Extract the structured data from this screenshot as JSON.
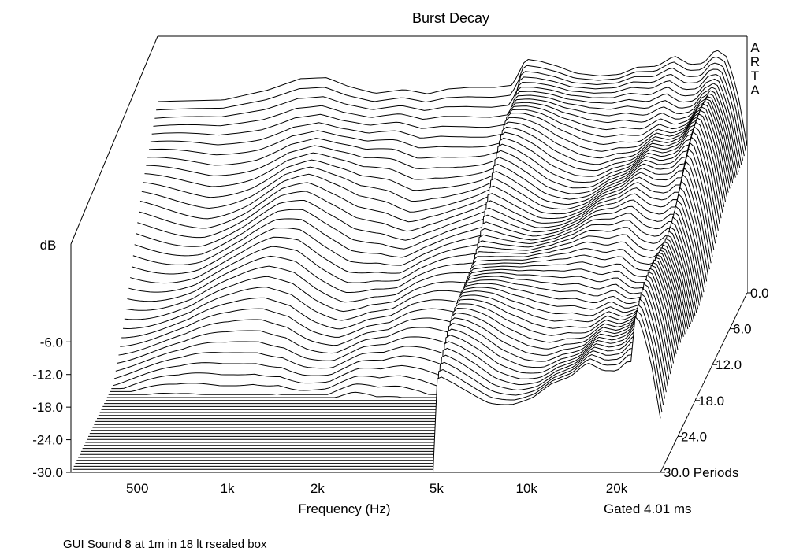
{
  "chart_data": {
    "type": "waterfall",
    "title": "Burst Decay",
    "brand": "ARTA",
    "xlabel": "Frequency (Hz)",
    "x_scale": "log",
    "xlim": [
      300,
      28000
    ],
    "x_ticks": [
      {
        "value": 500,
        "label": "500"
      },
      {
        "value": 1000,
        "label": "1k"
      },
      {
        "value": 2000,
        "label": "2k"
      },
      {
        "value": 5000,
        "label": "5k"
      },
      {
        "value": 10000,
        "label": "10k"
      },
      {
        "value": 20000,
        "label": "20k"
      }
    ],
    "ylabel": "dB",
    "ylim": [
      -30,
      12
    ],
    "y_ticks": [
      {
        "value": -6,
        "label": "-6.0"
      },
      {
        "value": -12,
        "label": "-12.0"
      },
      {
        "value": -18,
        "label": "-18.0"
      },
      {
        "value": -24,
        "label": "-24.0"
      },
      {
        "value": -30,
        "label": "-30.0"
      }
    ],
    "zlabel": "Periods",
    "zlim": [
      0,
      30
    ],
    "z_ticks": [
      {
        "value": 0,
        "label": "0.0"
      },
      {
        "value": 6,
        "label": "6.0"
      },
      {
        "value": 12,
        "label": "12.0"
      },
      {
        "value": 18,
        "label": "18.0"
      },
      {
        "value": 24,
        "label": "24.0"
      },
      {
        "value": 30,
        "label": "30.0 Periods"
      }
    ],
    "gate_label": "Gated 4.01 ms",
    "slice_step_periods": 0.5,
    "floor_db": -30,
    "first_slice": [
      [
        300,
        5.2
      ],
      [
        500,
        5.5
      ],
      [
        700,
        7.3
      ],
      [
        900,
        9.4
      ],
      [
        1100,
        9.6
      ],
      [
        1300,
        8.0
      ],
      [
        1600,
        6.7
      ],
      [
        2000,
        7.4
      ],
      [
        2400,
        6.6
      ],
      [
        2800,
        7.5
      ],
      [
        3300,
        7.8
      ],
      [
        4000,
        7.8
      ],
      [
        4600,
        8.2
      ],
      [
        5100,
        13.0
      ],
      [
        5700,
        12.6
      ],
      [
        6500,
        11.7
      ],
      [
        7500,
        10.4
      ],
      [
        9000,
        9.9
      ],
      [
        10500,
        10.2
      ],
      [
        12000,
        11.5
      ],
      [
        14000,
        11.7
      ],
      [
        16000,
        13.6
      ],
      [
        18000,
        12.0
      ],
      [
        20000,
        12.2
      ],
      [
        22000,
        14.8
      ],
      [
        24000,
        13.4
      ],
      [
        26000,
        7.0
      ],
      [
        28000,
        -3.0
      ]
    ]
  },
  "caption": "GUI Sound 8 at 1m in 18 lt rsealed box"
}
